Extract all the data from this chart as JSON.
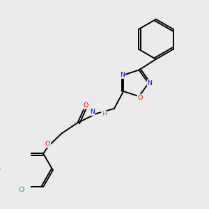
{
  "bg_color": "#ebebeb",
  "bond_color": "#000000",
  "atom_colors": {
    "O": "#ff0000",
    "N": "#0000ff",
    "Cl": "#00aa00",
    "C": "#000000",
    "H": "#708090"
  }
}
